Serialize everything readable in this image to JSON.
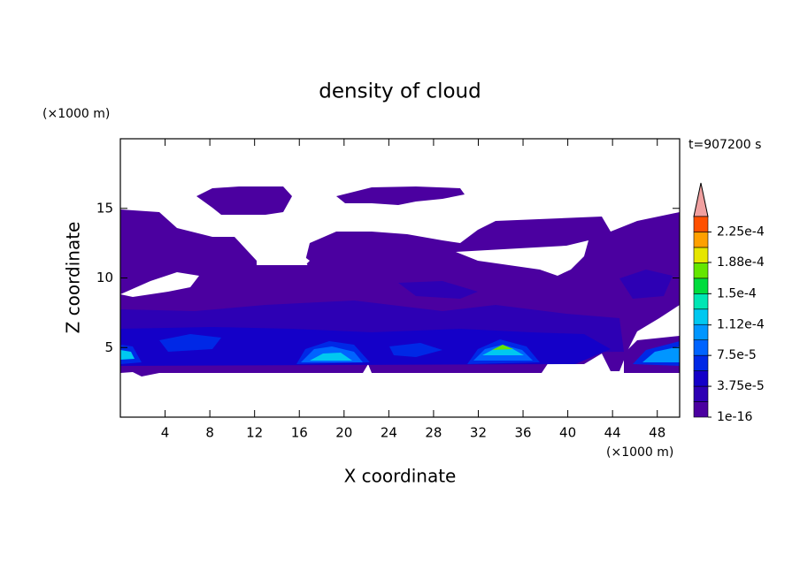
{
  "chart_data": {
    "type": "contour",
    "title": "density of cloud",
    "x_label": "X coordinate",
    "y_label": "Z coordinate",
    "x_unit": "(×1000 m)",
    "y_unit": "(×1000 m)",
    "time_label": "t=907200 s",
    "xlim": [
      0,
      50
    ],
    "ylim": [
      0,
      20
    ],
    "xticks": [
      4,
      8,
      12,
      16,
      20,
      24,
      28,
      32,
      36,
      40,
      44,
      48
    ],
    "yticks": [
      5,
      10,
      15
    ],
    "colorbar": {
      "lim": [
        1e-16,
        0.00024375
      ],
      "ticks": [
        {
          "value": 1e-16,
          "label": "1e-16"
        },
        {
          "value": 3.75e-05,
          "label": "3.75e-5"
        },
        {
          "value": 7.5e-05,
          "label": "7.5e-5"
        },
        {
          "value": 0.000112,
          "label": "1.12e-4"
        },
        {
          "value": 0.00015,
          "label": "1.5e-4"
        },
        {
          "value": 0.000188,
          "label": "1.88e-4"
        },
        {
          "value": 0.000225,
          "label": "2.25e-4"
        }
      ],
      "colors": [
        "#4b00a0",
        "#2d00b4",
        "#1400c8",
        "#0028e6",
        "#0064ff",
        "#0096ff",
        "#00c8f0",
        "#00e6b4",
        "#00dc3c",
        "#64e600",
        "#e6e600",
        "#ffa000",
        "#ff5000"
      ],
      "extend_color": "#f0a0a0"
    }
  }
}
